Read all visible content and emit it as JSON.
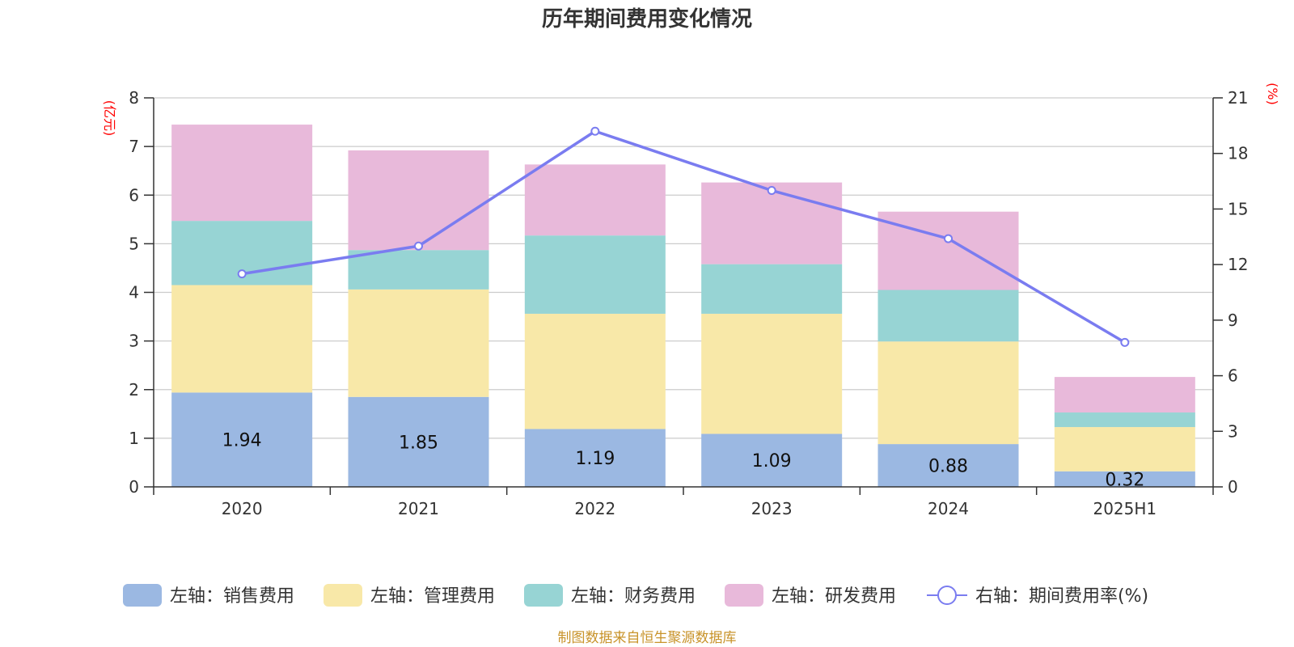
{
  "chart_data": {
    "type": "bar",
    "stacked": true,
    "title": "历年期间费用变化情况",
    "categories": [
      "2020",
      "2021",
      "2022",
      "2023",
      "2024",
      "2025H1"
    ],
    "left_axis": {
      "unit": "(亿元)",
      "ylim": [
        0,
        8
      ],
      "ticks": [
        "0",
        "1",
        "2",
        "3",
        "4",
        "5",
        "6",
        "7",
        "8"
      ]
    },
    "right_axis": {
      "unit": "(%)",
      "ylim": [
        0,
        21
      ],
      "ticks": [
        "0",
        "3",
        "6",
        "9",
        "12",
        "15",
        "18",
        "21"
      ]
    },
    "grid": true,
    "legend_position": "bottom",
    "series": [
      {
        "name": "左轴：销售费用",
        "axis": "left",
        "color": "#9bb8e2",
        "values": [
          1.94,
          1.85,
          1.19,
          1.09,
          0.88,
          0.32
        ],
        "labels": [
          "1.94",
          "1.85",
          "1.19",
          "1.09",
          "0.88",
          "0.32"
        ]
      },
      {
        "name": "左轴：管理费用",
        "axis": "left",
        "color": "#f8e8a8",
        "values": [
          2.21,
          2.21,
          2.37,
          2.47,
          2.11,
          0.91
        ]
      },
      {
        "name": "左轴：财务费用",
        "axis": "left",
        "color": "#97d4d4",
        "values": [
          1.32,
          0.81,
          1.61,
          1.02,
          1.06,
          0.3
        ]
      },
      {
        "name": "左轴：研发费用",
        "axis": "left",
        "color": "#e8b9da",
        "values": [
          1.98,
          2.05,
          1.46,
          1.68,
          1.61,
          0.73
        ]
      }
    ],
    "line": {
      "name": "右轴：期间费用率(%)",
      "axis": "right",
      "color": "#7a7cf0",
      "values": [
        11.5,
        13.0,
        19.2,
        16.0,
        13.4,
        7.8
      ]
    }
  },
  "source_note": "制图数据来自恒生聚源数据库"
}
